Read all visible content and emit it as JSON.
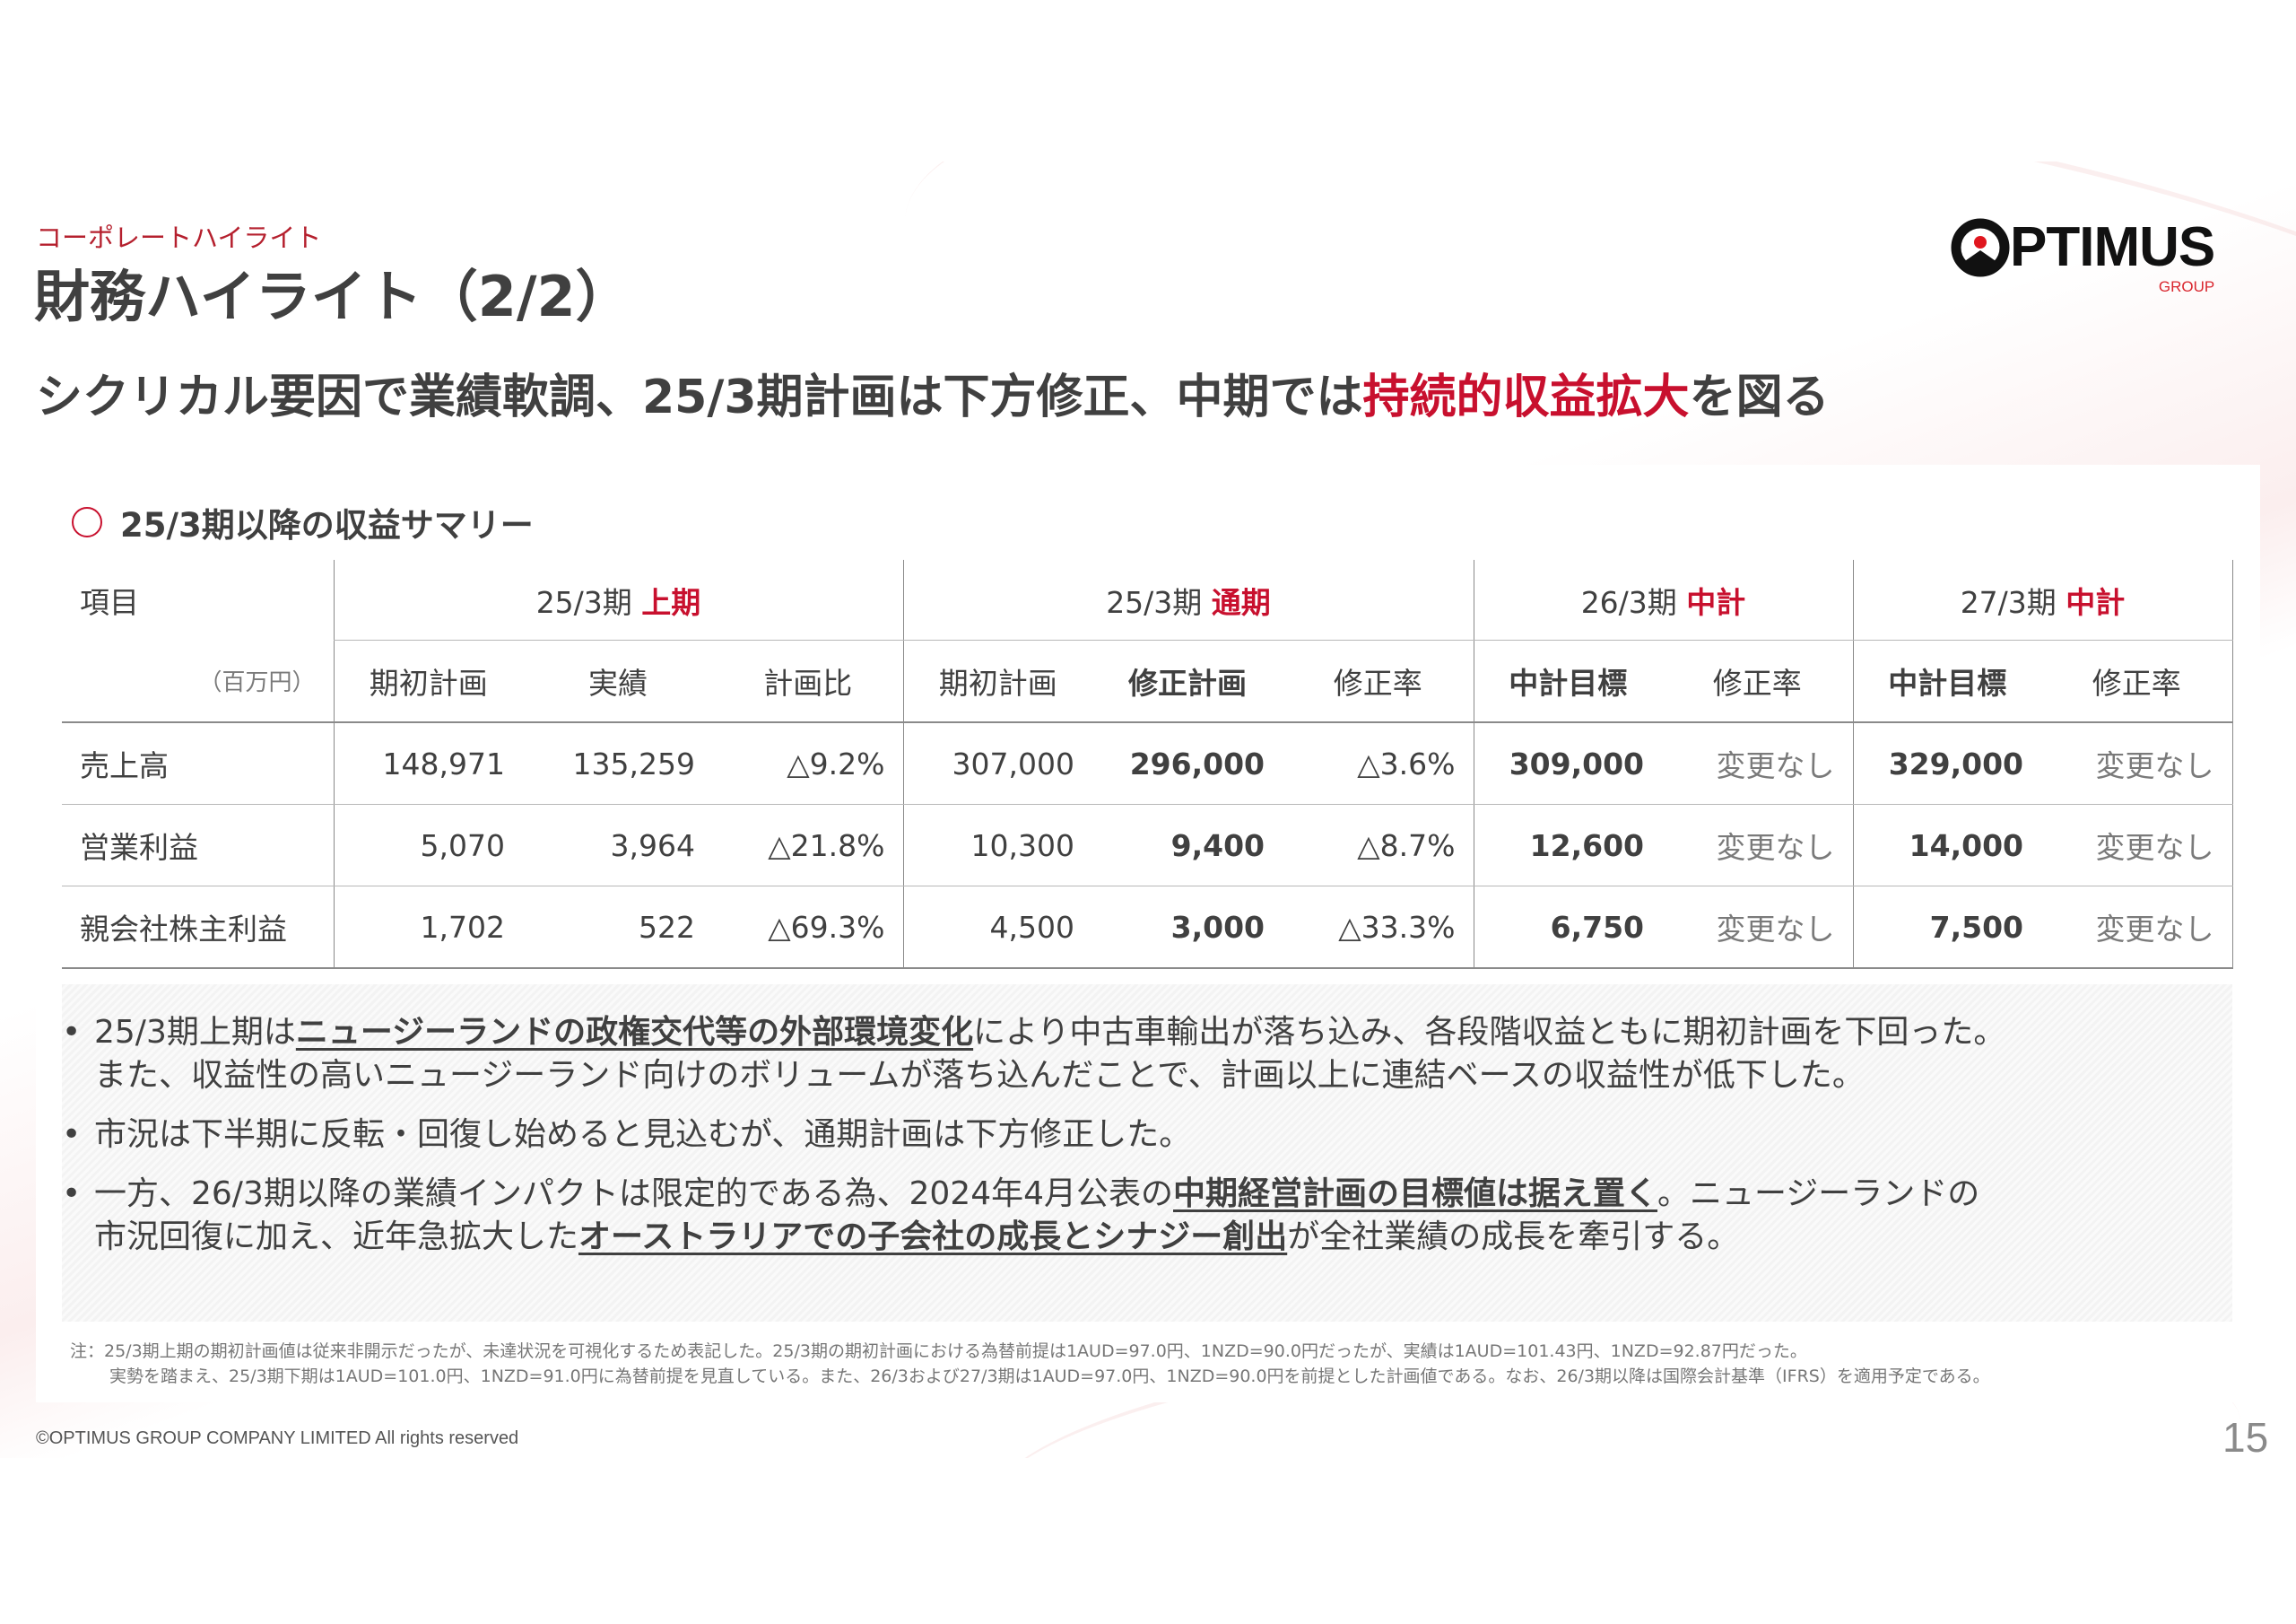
{
  "header": {
    "kicker": "コーポレートハイライト",
    "title": "財務ハイライト（2/2）",
    "headline_prefix": "シクリカル要因で業績軟調、25/3期計画は下方修正、中期では",
    "headline_emphasis": "持続的収益拡大",
    "headline_suffix": "を図る",
    "accent_color": "#c8102e"
  },
  "logo": {
    "word": "PTIMUS",
    "sub": "GROUP",
    "full_text": "OPTIMUS GROUP"
  },
  "section": {
    "icon": "circle-icon",
    "title": "25/3期以降の収益サマリー"
  },
  "table": {
    "item_header": "項目",
    "unit": "（百万円）",
    "groups": [
      {
        "period": "25/3期 ",
        "tag": "上期"
      },
      {
        "period": "25/3期 ",
        "tag": "通期"
      },
      {
        "period": "26/3期 ",
        "tag": "中計"
      },
      {
        "period": "27/3期 ",
        "tag": "中計"
      }
    ],
    "columns": [
      "期初計画",
      "実績",
      "計画比",
      "期初計画",
      "修正計画",
      "修正率",
      "中計目標",
      "修正率",
      "中計目標",
      "修正率"
    ],
    "rows": [
      {
        "label": "売上高",
        "values": [
          "148,971",
          "135,259",
          "△9.2%",
          "307,000",
          "296,000",
          "△3.6%",
          "309,000",
          "変更なし",
          "329,000",
          "変更なし"
        ]
      },
      {
        "label": "営業利益",
        "values": [
          "5,070",
          "3,964",
          "△21.8%",
          "10,300",
          "9,400",
          "△8.7%",
          "12,600",
          "変更なし",
          "14,000",
          "変更なし"
        ]
      },
      {
        "label": "親会社株主利益",
        "values": [
          "1,702",
          "522",
          "△69.3%",
          "4,500",
          "3,000",
          "△33.3%",
          "6,750",
          "変更なし",
          "7,500",
          "変更なし"
        ]
      }
    ]
  },
  "bullets": [
    {
      "parts": [
        [
          "25/3期上期は",
          false
        ],
        [
          "ニュージーランドの政権交代等の外部環境変化",
          true
        ],
        [
          "により中古車輸出が落ち込み、各段階収益ともに期初計画を下回った。",
          false
        ]
      ],
      "line2": [
        [
          "また、収益性の高いニュージーランド向けのボリュームが落ち込んだことで、計画以上に連結ベースの収益性が低下した。",
          false
        ]
      ]
    },
    {
      "parts": [
        [
          "市況は下半期に反転・回復し始めると見込むが、通期計画は下方修正した。",
          false
        ]
      ]
    },
    {
      "parts": [
        [
          "一方、26/3期以降の業績インパクトは限定的である為、2024年4月公表の",
          false
        ],
        [
          "中期経営計画の目標値は据え置く",
          true
        ],
        [
          "。ニュージーランドの",
          false
        ]
      ],
      "line2": [
        [
          "市況回復に加え、近年急拡大した",
          false
        ],
        [
          "オーストラリアでの子会社の成長とシナジー創出",
          true
        ],
        [
          "が全社業績の成長を牽引する。",
          false
        ]
      ]
    }
  ],
  "notes": [
    "注：25/3期上期の期初計画値は従来非開示だったが、未達状況を可視化するため表記した。25/3期の期初計画における為替前提は1AUD=97.0円、1NZD=90.0円だったが、実績は1AUD=101.43円、1NZD=92.87円だった。",
    "実勢を踏まえ、25/3期下期は1AUD=101.0円、1NZD=91.0円に為替前提を見直している。また、26/3および27/3期は1AUD=97.0円、1NZD=90.0円を前提とした計画値である。なお、26/3期以降は国際会計基準（IFRS）を適用予定である。"
  ],
  "footer": {
    "copyright": "©OPTIMUS GROUP COMPANY LIMITED All rights reserved",
    "page": "15"
  }
}
